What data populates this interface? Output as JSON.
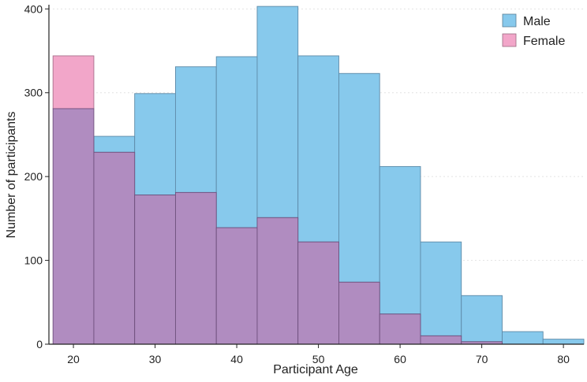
{
  "chart_data": {
    "type": "bar",
    "subtype": "overlapping-histogram",
    "title": "",
    "xlabel": "Participant Age",
    "ylabel": "Number of participants",
    "xlim": [
      17,
      82.5
    ],
    "ylim": [
      0,
      405
    ],
    "bin_width": 5,
    "bin_starts": [
      17.5,
      22.5,
      27.5,
      32.5,
      37.5,
      42.5,
      47.5,
      52.5,
      57.5,
      62.5,
      67.5,
      72.5,
      77.5
    ],
    "x_ticks": [
      20,
      30,
      40,
      50,
      60,
      70,
      80
    ],
    "y_ticks": [
      0,
      100,
      200,
      300,
      400
    ],
    "grid": true,
    "legend_position": "top-right",
    "series": [
      {
        "name": "Male",
        "color": "#87c9ec",
        "values": [
          281,
          248,
          299,
          331,
          343,
          403,
          344,
          323,
          212,
          122,
          58,
          15,
          6
        ]
      },
      {
        "name": "Female",
        "color": "#f2a6c9",
        "values": [
          344,
          229,
          178,
          181,
          139,
          151,
          122,
          74,
          36,
          10,
          3,
          0,
          0
        ]
      }
    ],
    "overlap_color": "#b08cc0"
  }
}
